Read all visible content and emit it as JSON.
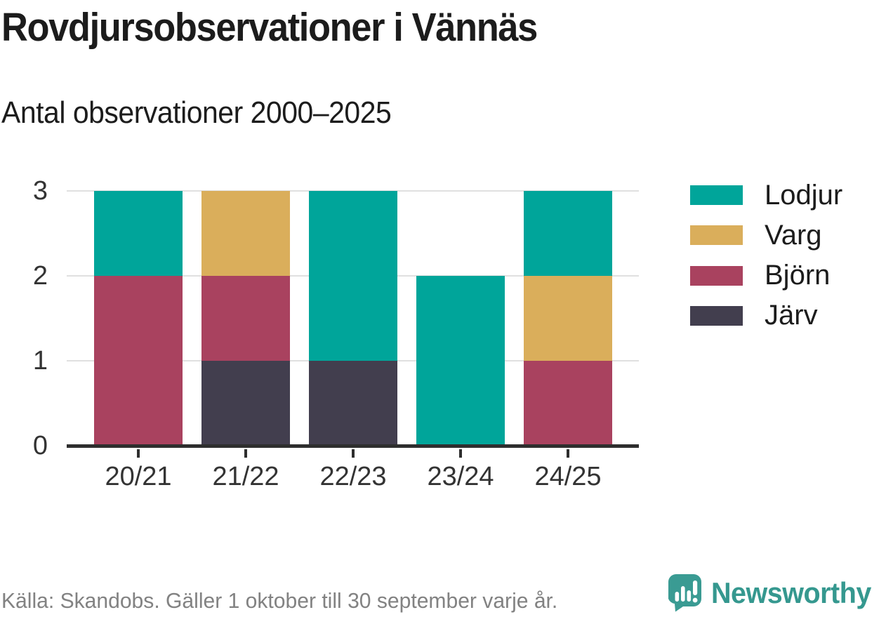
{
  "header": {
    "title": "Rovdjursobservationer i Vännäs",
    "subtitle": "Antal observationer 2000–2025"
  },
  "chart_data": {
    "type": "bar",
    "stacked": true,
    "title": "Rovdjursobservationer i Vännäs",
    "subtitle": "Antal observationer 2000–2025",
    "categories": [
      "20/21",
      "21/22",
      "22/23",
      "23/24",
      "24/25"
    ],
    "series": [
      {
        "name": "Järv",
        "color": "#423e4e",
        "values": [
          0,
          1,
          1,
          0,
          0
        ]
      },
      {
        "name": "Björn",
        "color": "#a9425f",
        "values": [
          2,
          1,
          0,
          0,
          1
        ]
      },
      {
        "name": "Varg",
        "color": "#daae5b",
        "values": [
          0,
          1,
          0,
          0,
          1
        ]
      },
      {
        "name": "Lodjur",
        "color": "#00a59a",
        "values": [
          1,
          0,
          2,
          2,
          1
        ]
      }
    ],
    "totals": [
      3,
      3,
      3,
      2,
      3
    ],
    "legend_order": [
      "Lodjur",
      "Varg",
      "Björn",
      "Järv"
    ],
    "legend_position": "right",
    "xlabel": "",
    "ylabel": "",
    "yticks": [
      0,
      1,
      2,
      3
    ],
    "ylim": [
      0,
      3
    ],
    "grid": true
  },
  "footer": {
    "source": "Källa: Skandobs. Gäller 1 oktober till 30 september varje år.",
    "brand": "Newsworthy",
    "brand_icon": "speech-bubble-bar-chart-icon"
  },
  "colors": {
    "grid": "#e0e0e0",
    "axis": "#2e2e2e",
    "text_dark": "#1c1c1c",
    "tick_text": "#333333",
    "source_text": "#828282",
    "brand_teal": "#35988f"
  }
}
